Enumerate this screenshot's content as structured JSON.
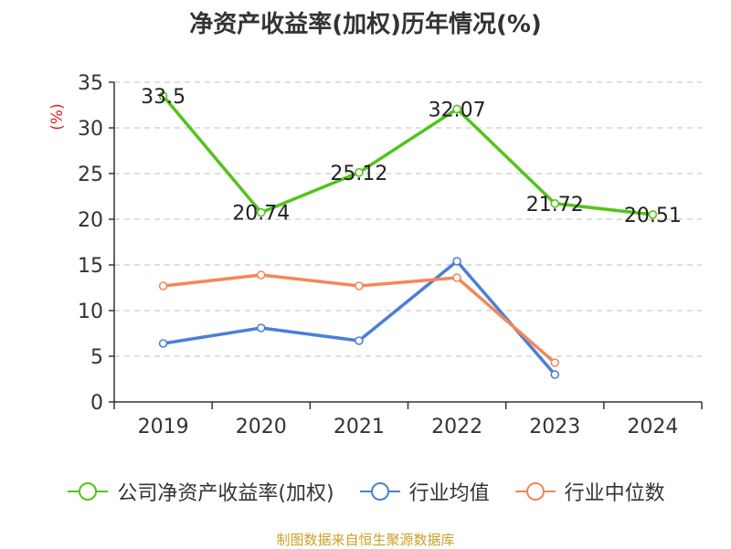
{
  "chart_data": {
    "type": "line",
    "title": "净资产收益率(加权)历年情况(%)",
    "ylabel": "(%)",
    "xlabel": "",
    "ylim": [
      0,
      35
    ],
    "yticks": [
      "0",
      "5",
      "10",
      "15",
      "20",
      "25",
      "30",
      "35"
    ],
    "categories": [
      "2019",
      "2020",
      "2021",
      "2022",
      "2023",
      "2024"
    ],
    "grid": true,
    "legend_position": "bottom",
    "series": [
      {
        "name": "公司净资产收益率(加权)",
        "color": "#52c41a",
        "values": [
          33.5,
          20.74,
          25.12,
          32.07,
          21.72,
          20.51
        ],
        "labels": [
          "33.5",
          "20.74",
          "25.12",
          "32.07",
          "21.72",
          "20.51"
        ]
      },
      {
        "name": "行业均值",
        "color": "#4a7fd9",
        "values": [
          6.4,
          8.1,
          6.7,
          15.4,
          3.0,
          null
        ]
      },
      {
        "name": "行业中位数",
        "color": "#f4875a",
        "values": [
          12.7,
          13.9,
          12.7,
          13.6,
          4.3,
          null
        ]
      }
    ]
  },
  "colors": {
    "title": "#333333",
    "ylabel": "#e02020",
    "source": "#c9a227",
    "axis": "#333333",
    "grid": "#cccccc"
  },
  "source_note": "制图数据来自恒生聚源数据库"
}
